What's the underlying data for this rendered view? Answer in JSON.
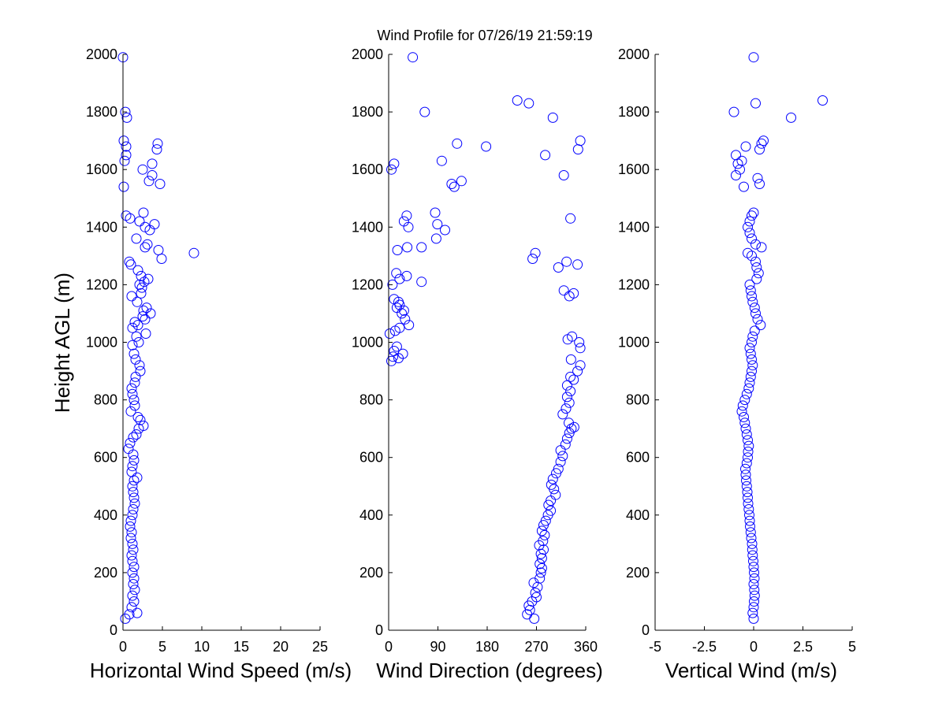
{
  "figure": {
    "title": "Wind Profile for  07/26/19 21:59:19",
    "marker_color": "#0000ff",
    "axis_color": "#000000",
    "background": "#ffffff"
  },
  "chart_data": [
    {
      "type": "scatter",
      "xlabel": "Horizontal Wind Speed (m/s)",
      "ylabel": "Height AGL (m)",
      "xlim": [
        0,
        25
      ],
      "ylim": [
        0,
        2000
      ],
      "xticks": [
        0,
        5,
        10,
        15,
        20,
        25
      ],
      "xtick_labels": [
        "0",
        "5",
        "10",
        "15",
        "20",
        "25"
      ],
      "yticks": [
        0,
        200,
        400,
        600,
        800,
        1000,
        1200,
        1400,
        1600,
        1800,
        2000
      ],
      "ytick_labels": [
        "0",
        "200",
        "400",
        "600",
        "800",
        "1000",
        "1200",
        "1400",
        "1600",
        "1800",
        "2000"
      ],
      "points": [
        [
          0.3,
          40
        ],
        [
          0.8,
          55
        ],
        [
          1.8,
          60
        ],
        [
          1.1,
          80
        ],
        [
          1.4,
          100
        ],
        [
          1.2,
          120
        ],
        [
          1.5,
          140
        ],
        [
          1.3,
          160
        ],
        [
          1.4,
          180
        ],
        [
          1.2,
          200
        ],
        [
          1.4,
          220
        ],
        [
          1.2,
          240
        ],
        [
          1.1,
          260
        ],
        [
          1.3,
          280
        ],
        [
          1.2,
          300
        ],
        [
          1.0,
          320
        ],
        [
          1.1,
          340
        ],
        [
          0.9,
          360
        ],
        [
          1.0,
          380
        ],
        [
          1.2,
          400
        ],
        [
          1.3,
          420
        ],
        [
          1.5,
          440
        ],
        [
          1.4,
          460
        ],
        [
          1.3,
          480
        ],
        [
          1.2,
          500
        ],
        [
          1.4,
          520
        ],
        [
          1.8,
          530
        ],
        [
          1.1,
          550
        ],
        [
          1.2,
          570
        ],
        [
          1.4,
          590
        ],
        [
          1.3,
          610
        ],
        [
          0.7,
          630
        ],
        [
          0.9,
          650
        ],
        [
          1.3,
          670
        ],
        [
          1.7,
          680
        ],
        [
          2.0,
          700
        ],
        [
          2.6,
          710
        ],
        [
          2.2,
          730
        ],
        [
          1.9,
          740
        ],
        [
          1.0,
          760
        ],
        [
          1.5,
          780
        ],
        [
          1.4,
          800
        ],
        [
          1.2,
          820
        ],
        [
          1.1,
          840
        ],
        [
          1.5,
          860
        ],
        [
          1.6,
          880
        ],
        [
          2.2,
          900
        ],
        [
          2.1,
          920
        ],
        [
          1.6,
          940
        ],
        [
          1.4,
          960
        ],
        [
          1.2,
          990
        ],
        [
          2.0,
          1000
        ],
        [
          1.7,
          1020
        ],
        [
          2.9,
          1030
        ],
        [
          1.2,
          1050
        ],
        [
          1.9,
          1060
        ],
        [
          1.5,
          1070
        ],
        [
          2.8,
          1080
        ],
        [
          2.5,
          1090
        ],
        [
          3.5,
          1100
        ],
        [
          2.6,
          1110
        ],
        [
          3.0,
          1120
        ],
        [
          1.8,
          1140
        ],
        [
          1.1,
          1160
        ],
        [
          2.3,
          1170
        ],
        [
          2.4,
          1190
        ],
        [
          2.1,
          1200
        ],
        [
          2.7,
          1210
        ],
        [
          3.2,
          1220
        ],
        [
          2.3,
          1230
        ],
        [
          1.9,
          1250
        ],
        [
          1.0,
          1270
        ],
        [
          0.8,
          1280
        ],
        [
          4.9,
          1290
        ],
        [
          9.0,
          1310
        ],
        [
          4.5,
          1320
        ],
        [
          2.8,
          1330
        ],
        [
          3.1,
          1340
        ],
        [
          1.7,
          1360
        ],
        [
          3.4,
          1390
        ],
        [
          2.8,
          1400
        ],
        [
          4.0,
          1410
        ],
        [
          2.1,
          1420
        ],
        [
          0.9,
          1430
        ],
        [
          0.4,
          1440
        ],
        [
          2.6,
          1450
        ],
        [
          0.1,
          1540
        ],
        [
          4.7,
          1550
        ],
        [
          3.3,
          1560
        ],
        [
          3.7,
          1580
        ],
        [
          2.5,
          1600
        ],
        [
          3.7,
          1620
        ],
        [
          0.2,
          1630
        ],
        [
          0.4,
          1650
        ],
        [
          4.3,
          1670
        ],
        [
          0.4,
          1680
        ],
        [
          4.4,
          1690
        ],
        [
          0.1,
          1700
        ],
        [
          0.5,
          1780
        ],
        [
          0.3,
          1800
        ],
        [
          0.0,
          1990
        ]
      ]
    },
    {
      "type": "scatter",
      "xlabel": "Wind Direction (degrees)",
      "ylabel": "",
      "xlim": [
        0,
        360
      ],
      "ylim": [
        0,
        2000
      ],
      "xticks": [
        0,
        90,
        180,
        270,
        360
      ],
      "xtick_labels": [
        "0",
        "90",
        "180",
        "270",
        "360"
      ],
      "yticks": [
        0,
        200,
        400,
        600,
        800,
        1000,
        1200,
        1400,
        1600,
        1800,
        2000
      ],
      "ytick_labels": [
        "0",
        "200",
        "400",
        "600",
        "800",
        "1000",
        "1200",
        "1400",
        "1600",
        "1800",
        "2000"
      ],
      "points": [
        [
          266,
          40
        ],
        [
          253,
          55
        ],
        [
          258,
          70
        ],
        [
          256,
          85
        ],
        [
          262,
          100
        ],
        [
          270,
          115
        ],
        [
          268,
          130
        ],
        [
          272,
          150
        ],
        [
          265,
          165
        ],
        [
          276,
          180
        ],
        [
          278,
          200
        ],
        [
          280,
          215
        ],
        [
          276,
          230
        ],
        [
          280,
          250
        ],
        [
          278,
          265
        ],
        [
          283,
          280
        ],
        [
          275,
          295
        ],
        [
          282,
          310
        ],
        [
          285,
          330
        ],
        [
          280,
          345
        ],
        [
          283,
          365
        ],
        [
          287,
          380
        ],
        [
          291,
          400
        ],
        [
          296,
          415
        ],
        [
          292,
          435
        ],
        [
          296,
          450
        ],
        [
          305,
          470
        ],
        [
          302,
          490
        ],
        [
          297,
          505
        ],
        [
          300,
          525
        ],
        [
          306,
          545
        ],
        [
          310,
          560
        ],
        [
          314,
          585
        ],
        [
          318,
          605
        ],
        [
          314,
          625
        ],
        [
          323,
          645
        ],
        [
          326,
          665
        ],
        [
          330,
          685
        ],
        [
          334,
          700
        ],
        [
          339,
          705
        ],
        [
          329,
          720
        ],
        [
          318,
          750
        ],
        [
          324,
          770
        ],
        [
          330,
          790
        ],
        [
          326,
          810
        ],
        [
          332,
          830
        ],
        [
          326,
          850
        ],
        [
          338,
          870
        ],
        [
          332,
          880
        ],
        [
          345,
          900
        ],
        [
          350,
          920
        ],
        [
          333,
          940
        ],
        [
          350,
          980
        ],
        [
          348,
          1000
        ],
        [
          335,
          1020
        ],
        [
          327,
          1010
        ],
        [
          18,
          945
        ],
        [
          15,
          985
        ],
        [
          26,
          960
        ],
        [
          5,
          935
        ],
        [
          8,
          950
        ],
        [
          10,
          970
        ],
        [
          2,
          1030
        ],
        [
          12,
          1040
        ],
        [
          20,
          1050
        ],
        [
          37,
          1060
        ],
        [
          30,
          1080
        ],
        [
          24,
          1100
        ],
        [
          28,
          1110
        ],
        [
          15,
          1120
        ],
        [
          20,
          1130
        ],
        [
          18,
          1140
        ],
        [
          10,
          1150
        ],
        [
          7,
          1200
        ],
        [
          20,
          1220
        ],
        [
          60,
          1210
        ],
        [
          33,
          1230
        ],
        [
          14,
          1240
        ],
        [
          310,
          1260
        ],
        [
          345,
          1270
        ],
        [
          325,
          1280
        ],
        [
          263,
          1290
        ],
        [
          268,
          1310
        ],
        [
          16,
          1320
        ],
        [
          34,
          1330
        ],
        [
          60,
          1330
        ],
        [
          87,
          1360
        ],
        [
          103,
          1390
        ],
        [
          89,
          1410
        ],
        [
          36,
          1400
        ],
        [
          28,
          1420
        ],
        [
          85,
          1450
        ],
        [
          33,
          1440
        ],
        [
          332,
          1430
        ],
        [
          320,
          1180
        ],
        [
          330,
          1160
        ],
        [
          338,
          1170
        ],
        [
          115,
          1550
        ],
        [
          120,
          1540
        ],
        [
          133,
          1560
        ],
        [
          320,
          1580
        ],
        [
          10,
          1620
        ],
        [
          5,
          1600
        ],
        [
          97,
          1630
        ],
        [
          286,
          1650
        ],
        [
          178,
          1680
        ],
        [
          125,
          1690
        ],
        [
          350,
          1700
        ],
        [
          346,
          1670
        ],
        [
          235,
          1840
        ],
        [
          256,
          1830
        ],
        [
          300,
          1780
        ],
        [
          66,
          1800
        ],
        [
          44,
          1990
        ]
      ]
    },
    {
      "type": "scatter",
      "xlabel": "Vertical Wind (m/s)",
      "ylabel": "",
      "xlim": [
        -5,
        5
      ],
      "ylim": [
        0,
        2000
      ],
      "xticks": [
        -5,
        -2.5,
        0,
        2.5,
        5
      ],
      "xtick_labels": [
        "-5",
        "-2.5",
        "0",
        "2.5",
        "5"
      ],
      "yticks": [
        0,
        200,
        400,
        600,
        800,
        1000,
        1200,
        1400,
        1600,
        1800,
        2000
      ],
      "ytick_labels": [
        "0",
        "200",
        "400",
        "600",
        "800",
        "1000",
        "1200",
        "1400",
        "1600",
        "1800",
        "2000"
      ],
      "points": [
        [
          0.0,
          40
        ],
        [
          -0.05,
          60
        ],
        [
          0.0,
          80
        ],
        [
          0.02,
          100
        ],
        [
          0.05,
          120
        ],
        [
          0.03,
          140
        ],
        [
          0.0,
          160
        ],
        [
          0.04,
          180
        ],
        [
          0.02,
          200
        ],
        [
          0.0,
          220
        ],
        [
          -0.02,
          240
        ],
        [
          -0.05,
          260
        ],
        [
          -0.07,
          280
        ],
        [
          -0.08,
          300
        ],
        [
          -0.12,
          320
        ],
        [
          -0.15,
          340
        ],
        [
          -0.18,
          360
        ],
        [
          -0.2,
          380
        ],
        [
          -0.22,
          400
        ],
        [
          -0.25,
          420
        ],
        [
          -0.28,
          440
        ],
        [
          -0.3,
          460
        ],
        [
          -0.32,
          480
        ],
        [
          -0.35,
          500
        ],
        [
          -0.38,
          520
        ],
        [
          -0.4,
          540
        ],
        [
          -0.42,
          560
        ],
        [
          -0.35,
          580
        ],
        [
          -0.3,
          600
        ],
        [
          -0.28,
          620
        ],
        [
          -0.25,
          640
        ],
        [
          -0.3,
          660
        ],
        [
          -0.35,
          680
        ],
        [
          -0.4,
          700
        ],
        [
          -0.45,
          720
        ],
        [
          -0.5,
          740
        ],
        [
          -0.6,
          760
        ],
        [
          -0.55,
          780
        ],
        [
          -0.45,
          800
        ],
        [
          -0.35,
          820
        ],
        [
          -0.25,
          840
        ],
        [
          -0.2,
          860
        ],
        [
          -0.15,
          880
        ],
        [
          -0.1,
          900
        ],
        [
          -0.05,
          920
        ],
        [
          -0.1,
          940
        ],
        [
          -0.15,
          960
        ],
        [
          -0.2,
          980
        ],
        [
          -0.1,
          1000
        ],
        [
          -0.05,
          1020
        ],
        [
          0.05,
          1040
        ],
        [
          0.35,
          1060
        ],
        [
          0.2,
          1080
        ],
        [
          0.1,
          1100
        ],
        [
          0.05,
          1120
        ],
        [
          -0.05,
          1140
        ],
        [
          -0.1,
          1160
        ],
        [
          -0.15,
          1180
        ],
        [
          -0.2,
          1200
        ],
        [
          0.15,
          1220
        ],
        [
          0.25,
          1240
        ],
        [
          0.15,
          1260
        ],
        [
          0.1,
          1280
        ],
        [
          -0.1,
          1300
        ],
        [
          -0.3,
          1310
        ],
        [
          0.4,
          1330
        ],
        [
          0.1,
          1340
        ],
        [
          -0.1,
          1360
        ],
        [
          -0.2,
          1380
        ],
        [
          -0.3,
          1400
        ],
        [
          -0.2,
          1420
        ],
        [
          -0.1,
          1440
        ],
        [
          0.0,
          1450
        ],
        [
          0.3,
          1550
        ],
        [
          0.2,
          1570
        ],
        [
          -0.5,
          1540
        ],
        [
          -0.9,
          1580
        ],
        [
          -0.7,
          1600
        ],
        [
          -0.8,
          1620
        ],
        [
          -0.6,
          1630
        ],
        [
          -0.9,
          1650
        ],
        [
          -0.4,
          1680
        ],
        [
          0.3,
          1670
        ],
        [
          0.4,
          1690
        ],
        [
          0.5,
          1700
        ],
        [
          -1.0,
          1800
        ],
        [
          3.5,
          1840
        ],
        [
          0.1,
          1830
        ],
        [
          1.9,
          1780
        ],
        [
          0.0,
          1990
        ]
      ]
    }
  ]
}
